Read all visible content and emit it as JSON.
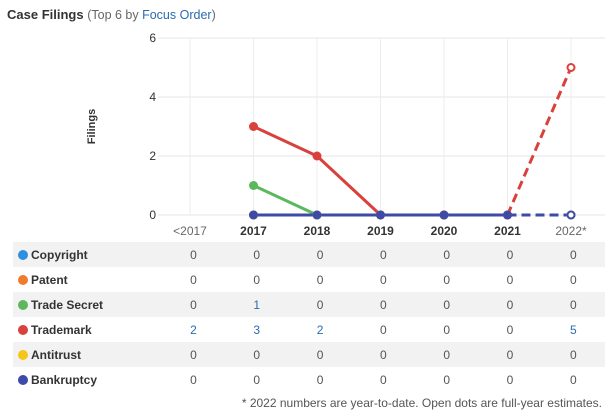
{
  "header": {
    "title": "Case Filings",
    "subtitle_prefix": "(Top 6 by ",
    "subtitle_link": "Focus Order",
    "subtitle_suffix": ")"
  },
  "chart_data": {
    "type": "line",
    "ylabel": "Filings",
    "xlabel": "",
    "categories": [
      "<2017",
      "2017",
      "2018",
      "2019",
      "2020",
      "2021",
      "2022*"
    ],
    "ylim": [
      0,
      6
    ],
    "yticks": [
      0,
      2,
      4,
      6
    ],
    "grid": true,
    "series": [
      {
        "name": "Copyright",
        "color": "#2e8fe0",
        "values": [
          0,
          0,
          0,
          0,
          0,
          0,
          0
        ]
      },
      {
        "name": "Patent",
        "color": "#f07b2e",
        "values": [
          0,
          0,
          0,
          0,
          0,
          0,
          0
        ]
      },
      {
        "name": "Trade Secret",
        "color": "#5cb85c",
        "values": [
          0,
          1,
          0,
          0,
          0,
          0,
          0
        ]
      },
      {
        "name": "Trademark",
        "color": "#d9413d",
        "values": [
          2,
          3,
          2,
          0,
          0,
          0,
          5
        ]
      },
      {
        "name": "Antitrust",
        "color": "#f5c518",
        "values": [
          0,
          0,
          0,
          0,
          0,
          0,
          0
        ]
      },
      {
        "name": "Bankruptcy",
        "color": "#3d4aa8",
        "values": [
          0,
          0,
          0,
          0,
          0,
          0,
          0
        ]
      }
    ],
    "highlighted_values": [
      [],
      [],
      [
        1
      ],
      [
        0,
        1,
        2,
        6
      ],
      [],
      []
    ],
    "estimate_category": "2022*",
    "footnote": "* 2022 numbers are year-to-date. Open dots are full-year estimates."
  }
}
